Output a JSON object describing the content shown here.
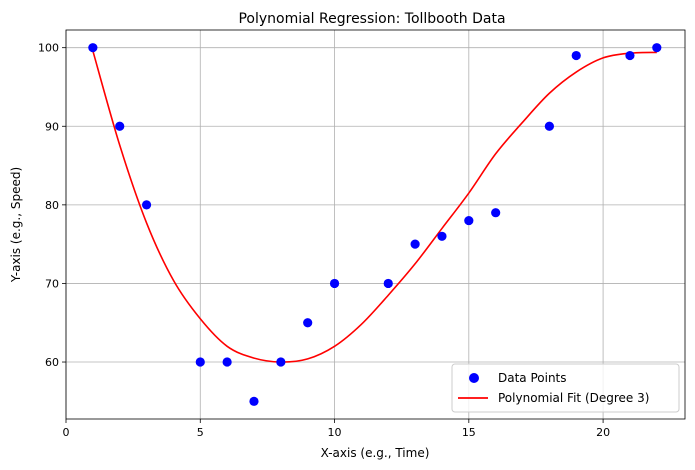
{
  "chart_data": {
    "type": "scatter",
    "title": "Polynomial Regression: Tollbooth Data",
    "xlabel": "X-axis (e.g., Time)",
    "ylabel": "Y-axis (e.g., Speed)",
    "xlim": [
      0.0,
      23.05
    ],
    "ylim": [
      52.75,
      102.25
    ],
    "xticks": [
      0,
      5,
      10,
      15,
      20
    ],
    "yticks": [
      60,
      70,
      80,
      90,
      100
    ],
    "grid": true,
    "legend_position": "lower right",
    "series": [
      {
        "name": "Data Points",
        "kind": "scatter",
        "color": "#0000ff",
        "x": [
          1,
          2,
          3,
          5,
          6,
          7,
          8,
          9,
          10,
          12,
          13,
          14,
          15,
          16,
          18,
          19,
          21,
          22
        ],
        "y": [
          100,
          90,
          80,
          60,
          60,
          55,
          60,
          65,
          70,
          70,
          75,
          76,
          78,
          79,
          90,
          99,
          99,
          100
        ]
      },
      {
        "name": "Polynomial Fit (Degree 3)",
        "kind": "line",
        "color": "#ff0000",
        "x": [
          1,
          2,
          3,
          4,
          5,
          6,
          7,
          8,
          9,
          10,
          11,
          12,
          13,
          14,
          15,
          16,
          17,
          18,
          19,
          20,
          21,
          22
        ],
        "y": [
          99.6,
          87.6,
          77.7,
          70.4,
          65.5,
          62.0,
          60.5,
          60.0,
          60.4,
          62.0,
          64.8,
          68.5,
          72.5,
          77.0,
          81.5,
          86.5,
          90.5,
          94.2,
          96.9,
          98.7,
          99.3,
          99.4
        ]
      }
    ]
  }
}
